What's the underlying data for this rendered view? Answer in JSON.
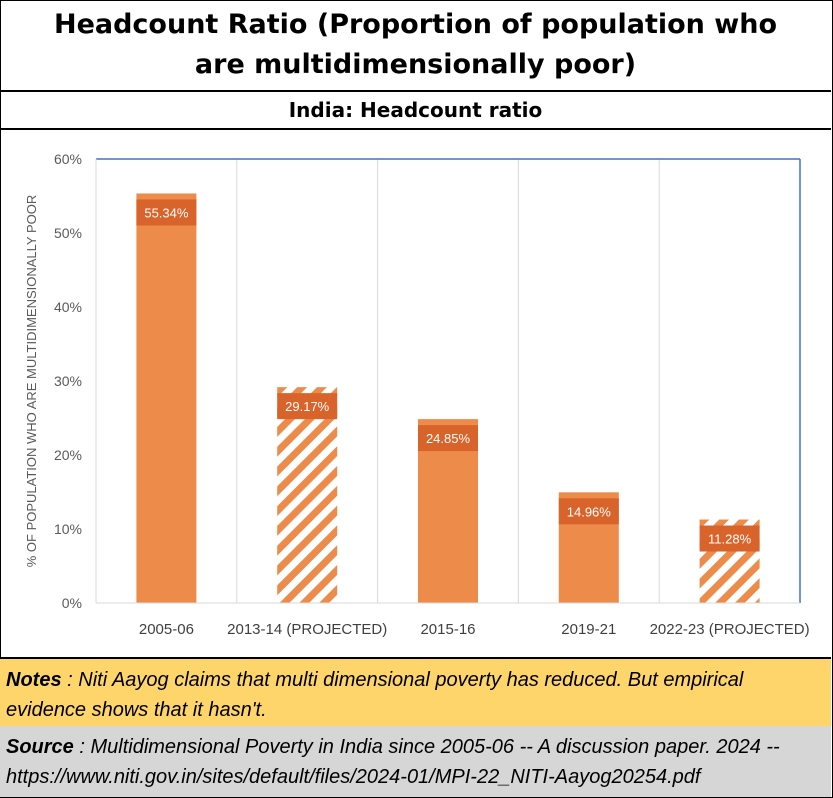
{
  "header": {
    "title": "Headcount Ratio (Proportion of population who are multidimensionally poor)",
    "subtitle": "India: Headcount ratio"
  },
  "chart_data": {
    "type": "bar",
    "categories": [
      "2005-06",
      "2013-14 (PROJECTED)",
      "2015-16",
      "2019-21",
      "2022-23 (PROJECTED)"
    ],
    "values": [
      55.34,
      29.17,
      24.85,
      14.96,
      11.28
    ],
    "data_labels": [
      "55.34%",
      "29.17%",
      "24.85%",
      "14.96%",
      "11.28%"
    ],
    "projected": [
      false,
      true,
      false,
      false,
      true
    ],
    "ylabel": "% OF POPULATION WHO ARE MULTIDIMENSIONALLY POOR",
    "ylim": [
      0,
      60
    ],
    "yticks": [
      0,
      10,
      20,
      30,
      40,
      50,
      60
    ],
    "ytick_labels": [
      "0%",
      "10%",
      "20%",
      "30%",
      "40%",
      "50%",
      "60%"
    ],
    "grid": "vertical",
    "colors": {
      "bar": "#ed8b4b",
      "label_bg": "#d9642b",
      "label_text": "#ffffff",
      "axis": "#4472c4"
    }
  },
  "notes": {
    "label": "Notes",
    "text": " : Niti Aayog claims that multi dimensional poverty has reduced.  But empirical evidence shows that it hasn't."
  },
  "source": {
    "label": "Source",
    "text": " : Multidimensional Poverty in India since 2005-06 -- A discussion paper. 2024 -- https://www.niti.gov.in/sites/default/files/2024-01/MPI-22_NITI-Aayog20254.pdf"
  }
}
